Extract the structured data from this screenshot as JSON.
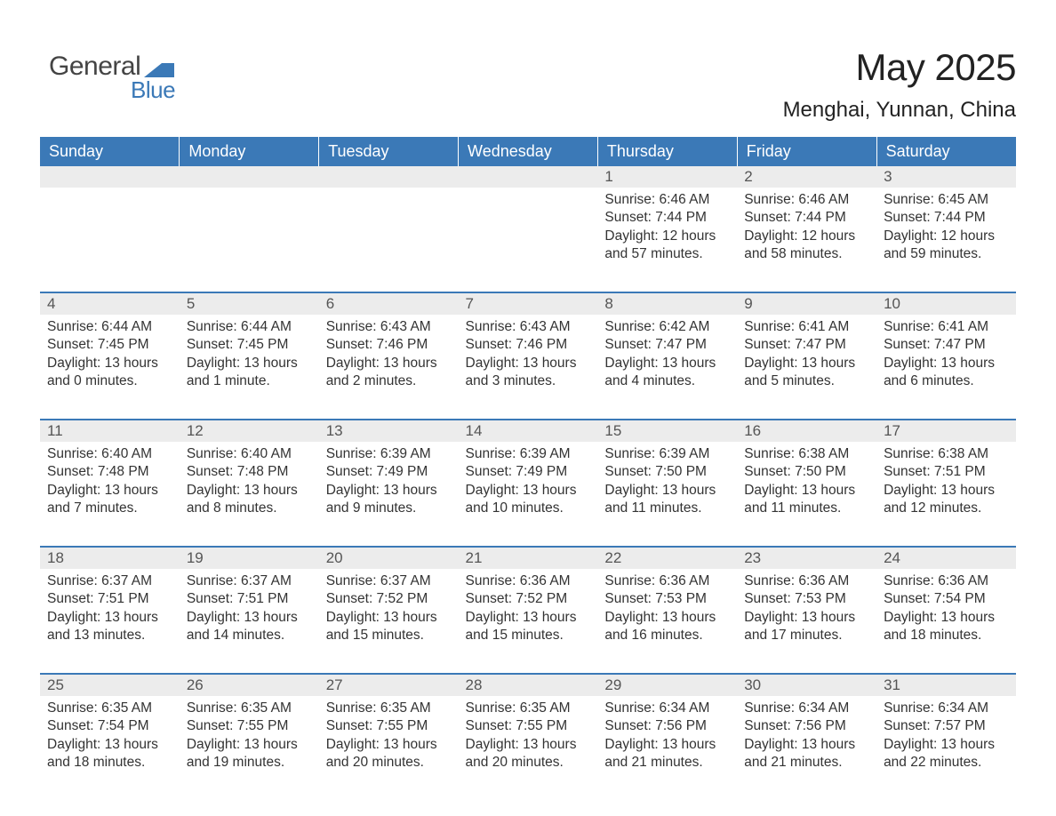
{
  "colors": {
    "header_bg": "#3b79b7",
    "header_text": "#ffffff",
    "daynum_bg": "#ececec",
    "daynum_text": "#555555",
    "border": "#3b79b7",
    "body_text": "#333333",
    "logo_blue": "#3b79b7",
    "logo_gray": "#444444",
    "background": "#ffffff"
  },
  "fonts": {
    "title_size_pt": 32,
    "subtitle_size_pt": 18,
    "header_size_pt": 14,
    "cell_size_pt": 12
  },
  "logo": {
    "text_gray": "General",
    "text_blue": "Blue"
  },
  "title": "May 2025",
  "subtitle": "Menghai, Yunnan, China",
  "weekdays": [
    "Sunday",
    "Monday",
    "Tuesday",
    "Wednesday",
    "Thursday",
    "Friday",
    "Saturday"
  ],
  "weeks": [
    [
      null,
      null,
      null,
      null,
      {
        "n": "1",
        "sunrise": "Sunrise: 6:46 AM",
        "sunset": "Sunset: 7:44 PM",
        "d1": "Daylight: 12 hours",
        "d2": "and 57 minutes."
      },
      {
        "n": "2",
        "sunrise": "Sunrise: 6:46 AM",
        "sunset": "Sunset: 7:44 PM",
        "d1": "Daylight: 12 hours",
        "d2": "and 58 minutes."
      },
      {
        "n": "3",
        "sunrise": "Sunrise: 6:45 AM",
        "sunset": "Sunset: 7:44 PM",
        "d1": "Daylight: 12 hours",
        "d2": "and 59 minutes."
      }
    ],
    [
      {
        "n": "4",
        "sunrise": "Sunrise: 6:44 AM",
        "sunset": "Sunset: 7:45 PM",
        "d1": "Daylight: 13 hours",
        "d2": "and 0 minutes."
      },
      {
        "n": "5",
        "sunrise": "Sunrise: 6:44 AM",
        "sunset": "Sunset: 7:45 PM",
        "d1": "Daylight: 13 hours",
        "d2": "and 1 minute."
      },
      {
        "n": "6",
        "sunrise": "Sunrise: 6:43 AM",
        "sunset": "Sunset: 7:46 PM",
        "d1": "Daylight: 13 hours",
        "d2": "and 2 minutes."
      },
      {
        "n": "7",
        "sunrise": "Sunrise: 6:43 AM",
        "sunset": "Sunset: 7:46 PM",
        "d1": "Daylight: 13 hours",
        "d2": "and 3 minutes."
      },
      {
        "n": "8",
        "sunrise": "Sunrise: 6:42 AM",
        "sunset": "Sunset: 7:47 PM",
        "d1": "Daylight: 13 hours",
        "d2": "and 4 minutes."
      },
      {
        "n": "9",
        "sunrise": "Sunrise: 6:41 AM",
        "sunset": "Sunset: 7:47 PM",
        "d1": "Daylight: 13 hours",
        "d2": "and 5 minutes."
      },
      {
        "n": "10",
        "sunrise": "Sunrise: 6:41 AM",
        "sunset": "Sunset: 7:47 PM",
        "d1": "Daylight: 13 hours",
        "d2": "and 6 minutes."
      }
    ],
    [
      {
        "n": "11",
        "sunrise": "Sunrise: 6:40 AM",
        "sunset": "Sunset: 7:48 PM",
        "d1": "Daylight: 13 hours",
        "d2": "and 7 minutes."
      },
      {
        "n": "12",
        "sunrise": "Sunrise: 6:40 AM",
        "sunset": "Sunset: 7:48 PM",
        "d1": "Daylight: 13 hours",
        "d2": "and 8 minutes."
      },
      {
        "n": "13",
        "sunrise": "Sunrise: 6:39 AM",
        "sunset": "Sunset: 7:49 PM",
        "d1": "Daylight: 13 hours",
        "d2": "and 9 minutes."
      },
      {
        "n": "14",
        "sunrise": "Sunrise: 6:39 AM",
        "sunset": "Sunset: 7:49 PM",
        "d1": "Daylight: 13 hours",
        "d2": "and 10 minutes."
      },
      {
        "n": "15",
        "sunrise": "Sunrise: 6:39 AM",
        "sunset": "Sunset: 7:50 PM",
        "d1": "Daylight: 13 hours",
        "d2": "and 11 minutes."
      },
      {
        "n": "16",
        "sunrise": "Sunrise: 6:38 AM",
        "sunset": "Sunset: 7:50 PM",
        "d1": "Daylight: 13 hours",
        "d2": "and 11 minutes."
      },
      {
        "n": "17",
        "sunrise": "Sunrise: 6:38 AM",
        "sunset": "Sunset: 7:51 PM",
        "d1": "Daylight: 13 hours",
        "d2": "and 12 minutes."
      }
    ],
    [
      {
        "n": "18",
        "sunrise": "Sunrise: 6:37 AM",
        "sunset": "Sunset: 7:51 PM",
        "d1": "Daylight: 13 hours",
        "d2": "and 13 minutes."
      },
      {
        "n": "19",
        "sunrise": "Sunrise: 6:37 AM",
        "sunset": "Sunset: 7:51 PM",
        "d1": "Daylight: 13 hours",
        "d2": "and 14 minutes."
      },
      {
        "n": "20",
        "sunrise": "Sunrise: 6:37 AM",
        "sunset": "Sunset: 7:52 PM",
        "d1": "Daylight: 13 hours",
        "d2": "and 15 minutes."
      },
      {
        "n": "21",
        "sunrise": "Sunrise: 6:36 AM",
        "sunset": "Sunset: 7:52 PM",
        "d1": "Daylight: 13 hours",
        "d2": "and 15 minutes."
      },
      {
        "n": "22",
        "sunrise": "Sunrise: 6:36 AM",
        "sunset": "Sunset: 7:53 PM",
        "d1": "Daylight: 13 hours",
        "d2": "and 16 minutes."
      },
      {
        "n": "23",
        "sunrise": "Sunrise: 6:36 AM",
        "sunset": "Sunset: 7:53 PM",
        "d1": "Daylight: 13 hours",
        "d2": "and 17 minutes."
      },
      {
        "n": "24",
        "sunrise": "Sunrise: 6:36 AM",
        "sunset": "Sunset: 7:54 PM",
        "d1": "Daylight: 13 hours",
        "d2": "and 18 minutes."
      }
    ],
    [
      {
        "n": "25",
        "sunrise": "Sunrise: 6:35 AM",
        "sunset": "Sunset: 7:54 PM",
        "d1": "Daylight: 13 hours",
        "d2": "and 18 minutes."
      },
      {
        "n": "26",
        "sunrise": "Sunrise: 6:35 AM",
        "sunset": "Sunset: 7:55 PM",
        "d1": "Daylight: 13 hours",
        "d2": "and 19 minutes."
      },
      {
        "n": "27",
        "sunrise": "Sunrise: 6:35 AM",
        "sunset": "Sunset: 7:55 PM",
        "d1": "Daylight: 13 hours",
        "d2": "and 20 minutes."
      },
      {
        "n": "28",
        "sunrise": "Sunrise: 6:35 AM",
        "sunset": "Sunset: 7:55 PM",
        "d1": "Daylight: 13 hours",
        "d2": "and 20 minutes."
      },
      {
        "n": "29",
        "sunrise": "Sunrise: 6:34 AM",
        "sunset": "Sunset: 7:56 PM",
        "d1": "Daylight: 13 hours",
        "d2": "and 21 minutes."
      },
      {
        "n": "30",
        "sunrise": "Sunrise: 6:34 AM",
        "sunset": "Sunset: 7:56 PM",
        "d1": "Daylight: 13 hours",
        "d2": "and 21 minutes."
      },
      {
        "n": "31",
        "sunrise": "Sunrise: 6:34 AM",
        "sunset": "Sunset: 7:57 PM",
        "d1": "Daylight: 13 hours",
        "d2": "and 22 minutes."
      }
    ]
  ]
}
